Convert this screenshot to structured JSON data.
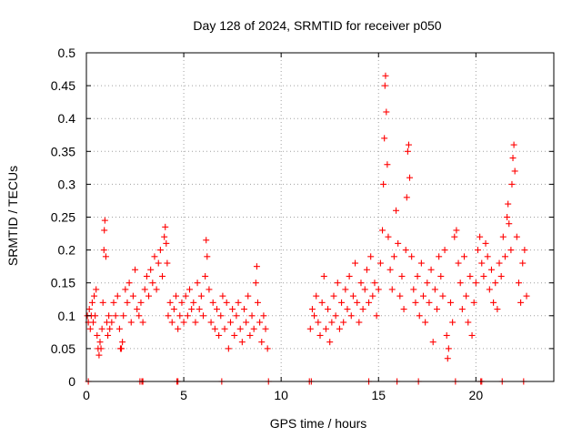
{
  "chart_data": {
    "type": "scatter",
    "title": "Day 128 of 2024, SRMTID for receiver p050",
    "xlabel": "GPS time / hours",
    "ylabel": "SRMTID / TECUs",
    "xlim": [
      0,
      24
    ],
    "ylim": [
      0,
      0.5
    ],
    "x_ticks": [
      0,
      5,
      10,
      15,
      20
    ],
    "x_tick_labels": [
      "0",
      "5",
      "10",
      "15",
      "20"
    ],
    "y_ticks": [
      0,
      0.05,
      0.1,
      0.15,
      0.2,
      0.25,
      0.3,
      0.35,
      0.4,
      0.45,
      0.5
    ],
    "y_tick_labels": [
      "0",
      "0.05",
      "0.1",
      "0.15",
      "0.2",
      "0.25",
      "0.3",
      "0.35",
      "0.4",
      "0.45",
      "0.5"
    ],
    "grid": true,
    "marker": "plus",
    "series_color": "#ff0000",
    "series": [
      {
        "name": "SRMTID",
        "points": [
          [
            0.05,
            0.1
          ],
          [
            0.1,
            0.09
          ],
          [
            0.15,
            0.11
          ],
          [
            0.2,
            0.08
          ],
          [
            0.25,
            0.1
          ],
          [
            0.3,
            0.12
          ],
          [
            0.35,
            0.09
          ],
          [
            0.4,
            0.13
          ],
          [
            0.45,
            0.1
          ],
          [
            0.5,
            0.14
          ],
          [
            0.55,
            0.07
          ],
          [
            0.6,
            0.05
          ],
          [
            0.65,
            0.04
          ],
          [
            0.7,
            0.06
          ],
          [
            0.75,
            0.05
          ],
          [
            0.8,
            0.08
          ],
          [
            0.85,
            0.12
          ],
          [
            0.9,
            0.2
          ],
          [
            0.92,
            0.23
          ],
          [
            0.95,
            0.245
          ],
          [
            1.0,
            0.19
          ],
          [
            1.05,
            0.09
          ],
          [
            1.1,
            0.07
          ],
          [
            1.15,
            0.1
          ],
          [
            1.2,
            0.08
          ],
          [
            1.3,
            0.09
          ],
          [
            1.4,
            0.12
          ],
          [
            1.5,
            0.1
          ],
          [
            1.6,
            0.13
          ],
          [
            1.7,
            0.08
          ],
          [
            1.75,
            0.05
          ],
          [
            1.8,
            0.05
          ],
          [
            1.85,
            0.06
          ],
          [
            1.9,
            0.1
          ],
          [
            2.0,
            0.14
          ],
          [
            2.1,
            0.12
          ],
          [
            2.2,
            0.15
          ],
          [
            2.3,
            0.09
          ],
          [
            2.4,
            0.13
          ],
          [
            2.5,
            0.17
          ],
          [
            2.6,
            0.11
          ],
          [
            2.7,
            0.1
          ],
          [
            2.8,
            0.12
          ],
          [
            2.9,
            0.09
          ],
          [
            3.0,
            0.14
          ],
          [
            3.1,
            0.16
          ],
          [
            3.2,
            0.13
          ],
          [
            3.3,
            0.17
          ],
          [
            3.4,
            0.15
          ],
          [
            3.5,
            0.19
          ],
          [
            3.6,
            0.14
          ],
          [
            3.7,
            0.18
          ],
          [
            3.8,
            0.2
          ],
          [
            3.9,
            0.16
          ],
          [
            4.0,
            0.22
          ],
          [
            4.05,
            0.235
          ],
          [
            4.1,
            0.21
          ],
          [
            4.15,
            0.18
          ],
          [
            4.2,
            0.1
          ],
          [
            4.3,
            0.12
          ],
          [
            4.4,
            0.09
          ],
          [
            4.5,
            0.11
          ],
          [
            4.6,
            0.13
          ],
          [
            4.7,
            0.08
          ],
          [
            4.8,
            0.1
          ],
          [
            4.9,
            0.12
          ],
          [
            5.0,
            0.09
          ],
          [
            5.1,
            0.13
          ],
          [
            5.2,
            0.1
          ],
          [
            5.3,
            0.14
          ],
          [
            5.4,
            0.11
          ],
          [
            5.5,
            0.12
          ],
          [
            5.6,
            0.09
          ],
          [
            5.7,
            0.15
          ],
          [
            5.8,
            0.11
          ],
          [
            5.9,
            0.13
          ],
          [
            6.0,
            0.1
          ],
          [
            6.1,
            0.16
          ],
          [
            6.15,
            0.215
          ],
          [
            6.2,
            0.19
          ],
          [
            6.3,
            0.14
          ],
          [
            6.4,
            0.09
          ],
          [
            6.5,
            0.12
          ],
          [
            6.6,
            0.08
          ],
          [
            6.7,
            0.11
          ],
          [
            6.8,
            0.07
          ],
          [
            6.9,
            0.1
          ],
          [
            7.0,
            0.13
          ],
          [
            7.1,
            0.08
          ],
          [
            7.2,
            0.12
          ],
          [
            7.3,
            0.05
          ],
          [
            7.4,
            0.09
          ],
          [
            7.5,
            0.11
          ],
          [
            7.6,
            0.07
          ],
          [
            7.7,
            0.1
          ],
          [
            7.8,
            0.12
          ],
          [
            7.9,
            0.08
          ],
          [
            8.0,
            0.06
          ],
          [
            8.1,
            0.11
          ],
          [
            8.2,
            0.09
          ],
          [
            8.3,
            0.13
          ],
          [
            8.4,
            0.07
          ],
          [
            8.5,
            0.1
          ],
          [
            8.6,
            0.08
          ],
          [
            8.7,
            0.15
          ],
          [
            8.75,
            0.175
          ],
          [
            8.8,
            0.12
          ],
          [
            8.9,
            0.09
          ],
          [
            9.0,
            0.06
          ],
          [
            9.1,
            0.1
          ],
          [
            9.2,
            0.08
          ],
          [
            9.3,
            0.05
          ],
          [
            11.5,
            0.08
          ],
          [
            11.6,
            0.11
          ],
          [
            11.7,
            0.1
          ],
          [
            11.8,
            0.13
          ],
          [
            11.9,
            0.09
          ],
          [
            12.0,
            0.07
          ],
          [
            12.1,
            0.12
          ],
          [
            12.2,
            0.16
          ],
          [
            12.3,
            0.08
          ],
          [
            12.4,
            0.11
          ],
          [
            12.5,
            0.06
          ],
          [
            12.6,
            0.09
          ],
          [
            12.7,
            0.13
          ],
          [
            12.8,
            0.1
          ],
          [
            12.9,
            0.15
          ],
          [
            13.0,
            0.08
          ],
          [
            13.1,
            0.12
          ],
          [
            13.2,
            0.09
          ],
          [
            13.3,
            0.14
          ],
          [
            13.4,
            0.11
          ],
          [
            13.5,
            0.16
          ],
          [
            13.6,
            0.1
          ],
          [
            13.7,
            0.13
          ],
          [
            13.8,
            0.18
          ],
          [
            13.9,
            0.12
          ],
          [
            14.0,
            0.09
          ],
          [
            14.1,
            0.15
          ],
          [
            14.2,
            0.11
          ],
          [
            14.3,
            0.14
          ],
          [
            14.4,
            0.17
          ],
          [
            14.5,
            0.12
          ],
          [
            14.6,
            0.19
          ],
          [
            14.7,
            0.13
          ],
          [
            14.8,
            0.15
          ],
          [
            14.9,
            0.1
          ],
          [
            15.0,
            0.14
          ],
          [
            15.1,
            0.18
          ],
          [
            15.2,
            0.23
          ],
          [
            15.25,
            0.3
          ],
          [
            15.3,
            0.37
          ],
          [
            15.33,
            0.45
          ],
          [
            15.36,
            0.465
          ],
          [
            15.4,
            0.41
          ],
          [
            15.45,
            0.33
          ],
          [
            15.5,
            0.22
          ],
          [
            15.6,
            0.17
          ],
          [
            15.7,
            0.14
          ],
          [
            15.8,
            0.19
          ],
          [
            15.9,
            0.26
          ],
          [
            16.0,
            0.21
          ],
          [
            16.1,
            0.13
          ],
          [
            16.2,
            0.16
          ],
          [
            16.3,
            0.11
          ],
          [
            16.4,
            0.2
          ],
          [
            16.45,
            0.28
          ],
          [
            16.5,
            0.35
          ],
          [
            16.55,
            0.36
          ],
          [
            16.6,
            0.31
          ],
          [
            16.7,
            0.19
          ],
          [
            16.8,
            0.14
          ],
          [
            16.9,
            0.12
          ],
          [
            17.0,
            0.16
          ],
          [
            17.1,
            0.1
          ],
          [
            17.2,
            0.18
          ],
          [
            17.3,
            0.13
          ],
          [
            17.4,
            0.09
          ],
          [
            17.5,
            0.15
          ],
          [
            17.6,
            0.12
          ],
          [
            17.7,
            0.17
          ],
          [
            17.8,
            0.06
          ],
          [
            17.9,
            0.14
          ],
          [
            18.0,
            0.11
          ],
          [
            18.1,
            0.19
          ],
          [
            18.2,
            0.16
          ],
          [
            18.3,
            0.13
          ],
          [
            18.4,
            0.2
          ],
          [
            18.5,
            0.07
          ],
          [
            18.55,
            0.035
          ],
          [
            18.6,
            0.05
          ],
          [
            18.7,
            0.12
          ],
          [
            18.8,
            0.09
          ],
          [
            18.9,
            0.22
          ],
          [
            19.0,
            0.23
          ],
          [
            19.1,
            0.18
          ],
          [
            19.2,
            0.15
          ],
          [
            19.3,
            0.11
          ],
          [
            19.4,
            0.19
          ],
          [
            19.5,
            0.13
          ],
          [
            19.6,
            0.09
          ],
          [
            19.7,
            0.16
          ],
          [
            19.8,
            0.07
          ],
          [
            19.9,
            0.12
          ],
          [
            20.0,
            0.15
          ],
          [
            20.1,
            0.2
          ],
          [
            20.2,
            0.22
          ],
          [
            20.3,
            0.18
          ],
          [
            20.4,
            0.16
          ],
          [
            20.5,
            0.21
          ],
          [
            20.6,
            0.19
          ],
          [
            20.7,
            0.14
          ],
          [
            20.8,
            0.17
          ],
          [
            20.9,
            0.12
          ],
          [
            21.0,
            0.15
          ],
          [
            21.1,
            0.11
          ],
          [
            21.2,
            0.18
          ],
          [
            21.3,
            0.16
          ],
          [
            21.4,
            0.22
          ],
          [
            21.5,
            0.19
          ],
          [
            21.6,
            0.25
          ],
          [
            21.65,
            0.27
          ],
          [
            21.7,
            0.24
          ],
          [
            21.8,
            0.2
          ],
          [
            21.85,
            0.3
          ],
          [
            21.9,
            0.34
          ],
          [
            21.95,
            0.36
          ],
          [
            22.0,
            0.32
          ],
          [
            22.1,
            0.22
          ],
          [
            22.2,
            0.15
          ],
          [
            22.3,
            0.12
          ],
          [
            22.4,
            0.18
          ],
          [
            22.5,
            0.2
          ],
          [
            22.6,
            0.13
          ]
        ]
      }
    ],
    "gap_markers_at_zero": [
      0.1,
      2.75,
      2.85,
      2.9,
      4.65,
      4.7,
      6.95,
      9.35,
      11.45,
      11.55,
      14.5,
      15.95,
      17.05,
      18.95,
      20.25,
      20.3,
      21.35,
      22.45
    ]
  }
}
